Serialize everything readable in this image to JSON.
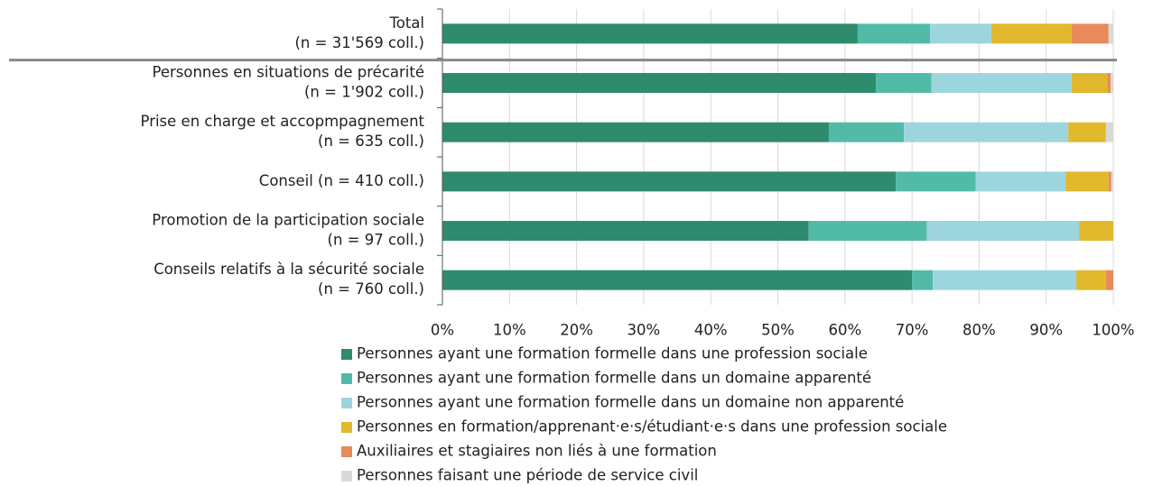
{
  "chart_data": {
    "type": "stacked_barh",
    "categories": [
      [
        "Total",
        "(n = 31'569 coll.)"
      ],
      [
        "Personnes en situations de précarité",
        "(n = 1'902 coll.)"
      ],
      [
        "Prise en charge et accopmpagnement",
        "(n = 635 coll.)"
      ],
      [
        "Conseil (n = 410 coll.)"
      ],
      [
        "Promotion de la participation sociale",
        "(n = 97 coll.)"
      ],
      [
        "Conseils relatifs à la sécurité sociale",
        "(n = 760 coll.)"
      ]
    ],
    "series": [
      {
        "name": "Personnes ayant une formation formelle dans une profession sociale",
        "color": "#2e8b6e",
        "values": [
          61.9,
          64.6,
          57.6,
          67.6,
          54.6,
          70.0
        ]
      },
      {
        "name": "Personnes ayant une formation formelle dans un domaine apparenté",
        "color": "#52bba8",
        "values": [
          10.8,
          8.3,
          11.2,
          11.9,
          17.6,
          3.1
        ]
      },
      {
        "name": "Personnes ayant une formation formelle dans un domaine non apparenté",
        "color": "#9dd5de",
        "values": [
          9.1,
          20.9,
          24.5,
          13.4,
          22.7,
          21.4
        ]
      },
      {
        "name": "Personnes en formation/apprenant·e·s/étudiant·e·s dans une profession sociale",
        "color": "#e0b92d",
        "values": [
          12.0,
          5.3,
          5.6,
          6.4,
          5.1,
          4.4
        ]
      },
      {
        "name": "Auxiliaires et stagiaires non liés à une formation",
        "color": "#e88a5a",
        "values": [
          5.5,
          0.5,
          0,
          0.4,
          0,
          1.1
        ]
      },
      {
        "name": "Personnes faisant une période de service civil",
        "color": "#d9d9d9",
        "values": [
          0.7,
          0.4,
          1.1,
          0.3,
          0,
          0
        ]
      }
    ],
    "xlim": [
      0,
      100
    ],
    "xticks": [
      {
        "value": 0,
        "label": "0%"
      },
      {
        "value": 10,
        "label": "10%"
      },
      {
        "value": 20,
        "label": "20%"
      },
      {
        "value": 30,
        "label": "30%"
      },
      {
        "value": 40,
        "label": "40%"
      },
      {
        "value": 50,
        "label": "50%"
      },
      {
        "value": 60,
        "label": "60%"
      },
      {
        "value": 70,
        "label": "70%"
      },
      {
        "value": 80,
        "label": "80%"
      },
      {
        "value": 90,
        "label": "90%"
      },
      {
        "value": 100,
        "label": "100%"
      }
    ],
    "grid": true
  }
}
